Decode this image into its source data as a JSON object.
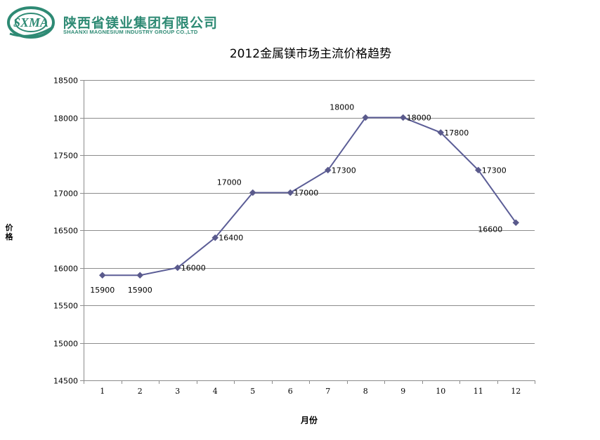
{
  "header": {
    "company_cn": "陕西省镁业集团有限公司",
    "company_en": "SHAANXI MAGNESIUM INDUSTRY GROUP CO.,LTD",
    "logo_text": "SXMA"
  },
  "colors": {
    "brand": "#2e8a74",
    "series": "#5b5d96",
    "marker": "#5a5a8c",
    "grid": "#8c8c8c"
  },
  "chart_data": {
    "type": "line",
    "title": "2012金属镁市场主流价格趋势",
    "xlabel": "月份",
    "ylabel": "价格",
    "categories": [
      "1",
      "2",
      "3",
      "4",
      "5",
      "6",
      "7",
      "8",
      "9",
      "10",
      "11",
      "12"
    ],
    "series": [
      {
        "values": [
          15900,
          15900,
          16000,
          16400,
          17000,
          17000,
          17300,
          18000,
          18000,
          17800,
          17300,
          16600
        ]
      }
    ],
    "data_labels": [
      "15900",
      "15900",
      "16000",
      "16400",
      "17000",
      "17000",
      "17300",
      "18000",
      "18000",
      "17800",
      "17300",
      "16600"
    ],
    "label_placement": [
      "below",
      "below",
      "right",
      "right",
      "above-left",
      "right",
      "right",
      "above-left",
      "right",
      "right",
      "right",
      "below-left"
    ],
    "ylim": [
      14500,
      18500
    ],
    "yticks": [
      14500,
      15000,
      15500,
      16000,
      16500,
      17000,
      17500,
      18000,
      18500
    ],
    "grid": true,
    "legend": "none"
  }
}
